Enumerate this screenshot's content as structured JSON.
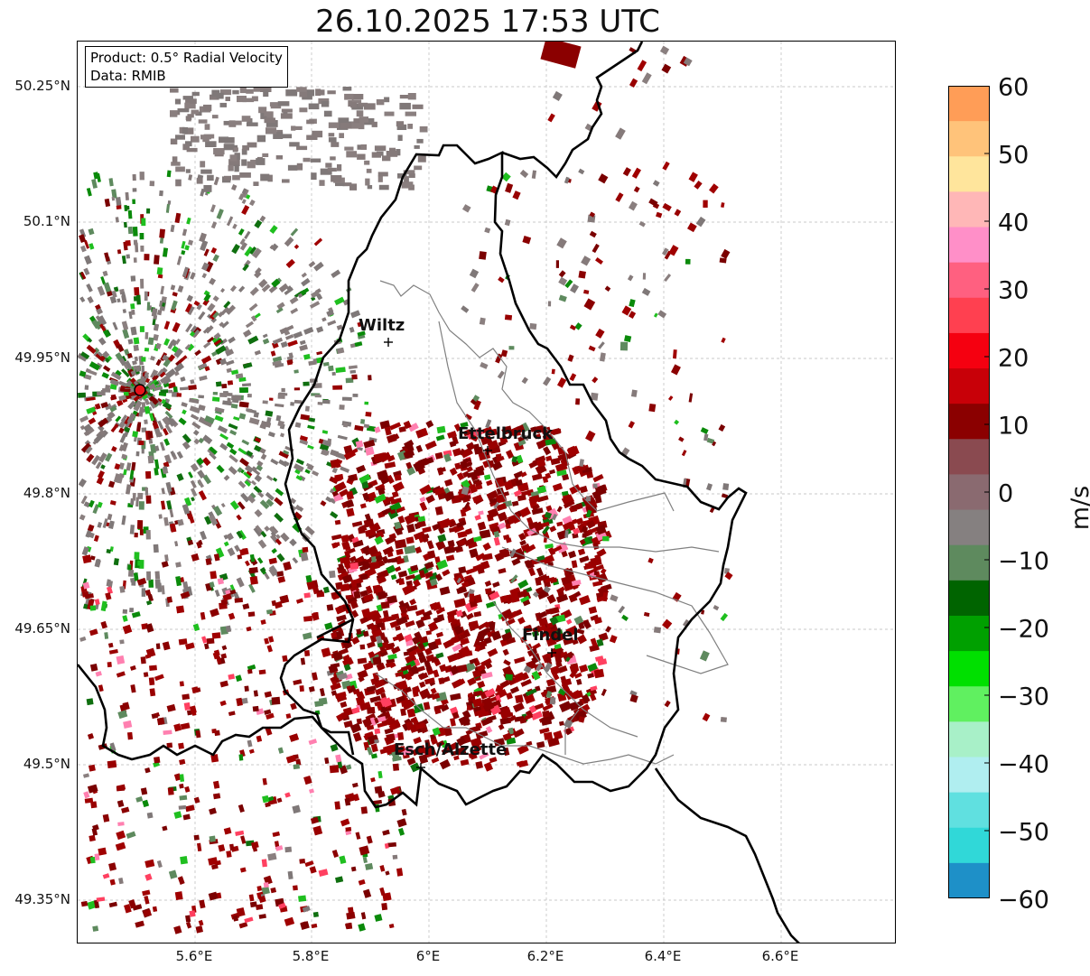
{
  "title": "26.10.2025 17:53 UTC",
  "info_box": {
    "product": "Product: 0.5° Radial Velocity",
    "data_source": "Data: RMIB"
  },
  "map": {
    "lat_labels": [
      "50.25°N",
      "50.1°N",
      "49.95°N",
      "49.8°N",
      "49.65°N",
      "49.5°N",
      "49.35°N"
    ],
    "lon_labels": [
      "5.6°E",
      "5.8°E",
      "6°E",
      "6.2°E",
      "6.4°E",
      "6.6°E"
    ],
    "cities": [
      {
        "name": "Wiltz"
      },
      {
        "name": "Ettelbruck"
      },
      {
        "name": "Findel"
      },
      {
        "name": "Esch/Alzette"
      }
    ],
    "radar_site_color": "#e8141c",
    "border_color": "#000000"
  },
  "colorbar": {
    "label": "m/s",
    "ticks": [
      "60",
      "50",
      "40",
      "30",
      "20",
      "10",
      "0",
      "−10",
      "−20",
      "−30",
      "−40",
      "−50",
      "−60"
    ],
    "range": [
      -60,
      60
    ],
    "colors_top_to_bottom": [
      "#ff9d57",
      "#ffc37a",
      "#ffe59c",
      "#ffb7b7",
      "#ff8fc8",
      "#ff6080",
      "#ff4050",
      "#f50010",
      "#c80008",
      "#8b0000",
      "#8a4a50",
      "#8a6a70",
      "#858080",
      "#5e8a5e",
      "#006400",
      "#00a000",
      "#00e000",
      "#60f060",
      "#a8f0c8",
      "#b0eef0",
      "#60e0e0",
      "#30d8d8",
      "#1e90c8"
    ]
  }
}
